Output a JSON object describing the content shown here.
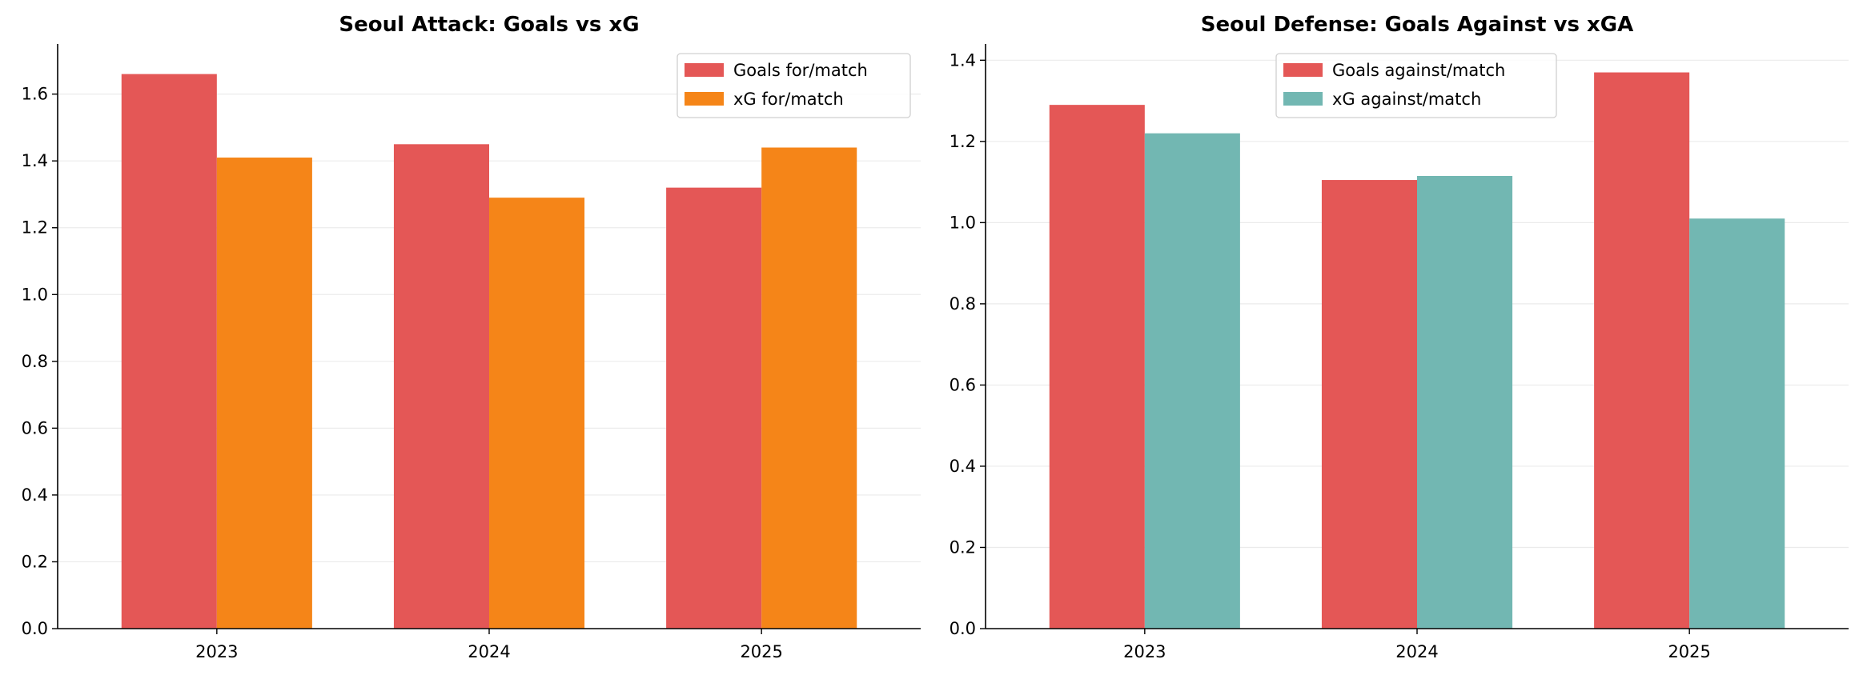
{
  "chart_data": [
    {
      "type": "bar",
      "title": "Seoul Attack: Goals vs xG",
      "xlabel": "",
      "ylabel": "",
      "categories": [
        "2023",
        "2024",
        "2025"
      ],
      "series": [
        {
          "name": "Goals for/match",
          "values": [
            1.66,
            1.45,
            1.32
          ],
          "color": "#e45756"
        },
        {
          "name": "xG for/match",
          "values": [
            1.41,
            1.29,
            1.44
          ],
          "color": "#f58518"
        }
      ],
      "ylim": [
        0,
        1.75
      ],
      "yticks": [
        0.0,
        0.2,
        0.4,
        0.6,
        0.8,
        1.0,
        1.2,
        1.4,
        1.6
      ],
      "ytick_labels": [
        "0.0",
        "0.2",
        "0.4",
        "0.6",
        "0.8",
        "1.0",
        "1.2",
        "1.4",
        "1.6"
      ],
      "grid": "y",
      "legend_position": "top-right"
    },
    {
      "type": "bar",
      "title": "Seoul Defense: Goals Against vs xGA",
      "xlabel": "",
      "ylabel": "",
      "categories": [
        "2023",
        "2024",
        "2025"
      ],
      "series": [
        {
          "name": "Goals against/match",
          "values": [
            1.29,
            1.105,
            1.37
          ],
          "color": "#e45756"
        },
        {
          "name": "xG against/match",
          "values": [
            1.22,
            1.115,
            1.01
          ],
          "color": "#72b7b2"
        }
      ],
      "ylim": [
        0,
        1.44
      ],
      "yticks": [
        0.0,
        0.2,
        0.4,
        0.6,
        0.8,
        1.0,
        1.2,
        1.4
      ],
      "ytick_labels": [
        "0.0",
        "0.2",
        "0.4",
        "0.6",
        "0.8",
        "1.0",
        "1.2",
        "1.4"
      ],
      "grid": "y",
      "legend_position": "top-center"
    }
  ]
}
